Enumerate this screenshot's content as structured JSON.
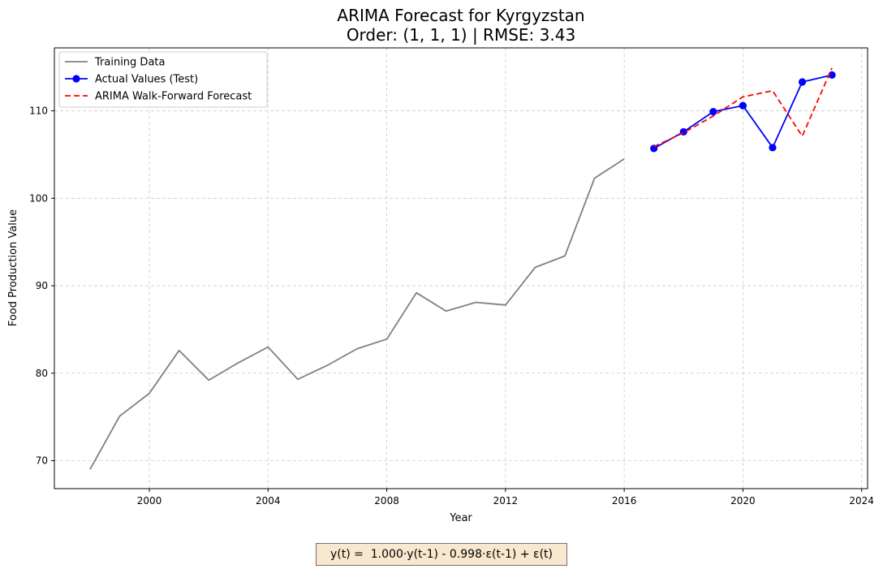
{
  "chart_data": {
    "type": "line",
    "title": "ARIMA Forecast for Kyrgyzstan",
    "subtitle": "Order: (1, 1, 1) | RMSE: 3.43",
    "xlabel": "Year",
    "ylabel": "Food Production Value",
    "xlim": [
      1996.8,
      2024.2
    ],
    "ylim": [
      66.8,
      117.2
    ],
    "x_ticks": [
      2000,
      2004,
      2008,
      2012,
      2016,
      2020,
      2024
    ],
    "y_ticks": [
      70,
      80,
      90,
      100,
      110
    ],
    "grid": true,
    "legend_position": "upper-left",
    "series": [
      {
        "name": "Training Data",
        "color": "#808080",
        "style": "solid",
        "marker": "none",
        "x": [
          1998,
          1999,
          2000,
          2001,
          2002,
          2003,
          2004,
          2005,
          2006,
          2007,
          2008,
          2009,
          2010,
          2011,
          2012,
          2013,
          2014,
          2015,
          2016
        ],
        "y": [
          69.0,
          75.1,
          77.7,
          82.6,
          79.2,
          81.2,
          83.0,
          79.3,
          80.9,
          82.8,
          83.9,
          89.2,
          87.1,
          88.1,
          87.8,
          92.1,
          93.4,
          102.3,
          104.5
        ]
      },
      {
        "name": "Actual Values (Test)",
        "color": "#0000ff",
        "style": "solid",
        "marker": "circle",
        "x": [
          2017,
          2018,
          2019,
          2020,
          2021,
          2022,
          2023
        ],
        "y": [
          105.7,
          107.6,
          109.9,
          110.6,
          105.8,
          113.3,
          114.1
        ]
      },
      {
        "name": "ARIMA Walk-Forward Forecast",
        "color": "#ff0000",
        "style": "dashed",
        "marker": "none",
        "x": [
          2017,
          2018,
          2019,
          2020,
          2021,
          2022,
          2023
        ],
        "y": [
          105.9,
          107.5,
          109.4,
          111.6,
          112.3,
          107.1,
          114.9
        ]
      }
    ]
  },
  "equation": "y(t) =  1.000·y(t-1) - 0.998·ε(t-1) + ε(t)"
}
